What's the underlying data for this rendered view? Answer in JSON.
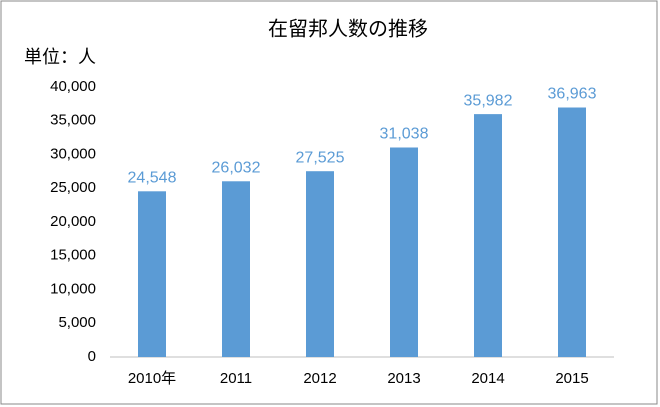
{
  "chart_data": {
    "type": "bar",
    "title": "在留邦人数の推移",
    "y_axis_label": "単位：人",
    "categories": [
      "2010年",
      "2011",
      "2012",
      "2013",
      "2014",
      "2015"
    ],
    "values": [
      24548,
      26032,
      27525,
      31038,
      35982,
      36963
    ],
    "value_labels": [
      "24,548",
      "26,032",
      "27,525",
      "31,038",
      "35,982",
      "36,963"
    ],
    "color": "#5b9bd5",
    "ylim": [
      0,
      40000
    ],
    "yticks": [
      0,
      {
        "value": 5000,
        "label": "5,000"
      },
      {
        "value": 10000,
        "label": "10,000"
      },
      {
        "value": 15000,
        "label": "15,000"
      },
      {
        "value": 20000,
        "label": "20,000"
      },
      {
        "value": 25000,
        "label": "25,000"
      },
      {
        "value": 30000,
        "label": "30,000"
      },
      {
        "value": 35000,
        "label": "35,000"
      },
      {
        "value": 40000,
        "label": "40,000"
      }
    ],
    "grid": false
  }
}
